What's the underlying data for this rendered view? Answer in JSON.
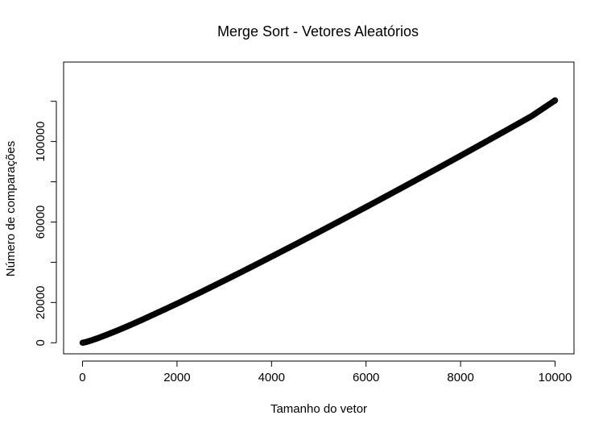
{
  "chart_data": {
    "type": "scatter",
    "title": "Merge Sort - Vetores Aleatórios",
    "xlabel": "Tamanho do vetor",
    "ylabel": "Número de comparações",
    "xlim": [
      -400,
      10400
    ],
    "ylim": [
      -5500,
      139500
    ],
    "xticks": [
      0,
      2000,
      4000,
      6000,
      8000,
      10000
    ],
    "xtick_labels": [
      "0",
      "2000",
      "4000",
      "6000",
      "8000",
      "10000"
    ],
    "yticks": [
      0,
      20000,
      40000,
      60000,
      80000,
      100000,
      120000
    ],
    "ytick_labels": [
      "0",
      "20000",
      "",
      "60000",
      "",
      "100000",
      ""
    ],
    "grid": false,
    "legend": "none",
    "marker": "open-circle",
    "color": "#000000",
    "series": [
      {
        "x": [
          1,
          50,
          100,
          200,
          300,
          400,
          500,
          750,
          1000,
          1250,
          1500,
          1750,
          2000,
          2500,
          3000,
          3500,
          4000,
          4500,
          5000,
          5500,
          6000,
          6500,
          7000,
          7500,
          8000,
          8500,
          9000,
          9500,
          10000
        ],
        "y": [
          0,
          220,
          540,
          1280,
          2090,
          2950,
          3850,
          6200,
          8700,
          11300,
          14000,
          16700,
          19450,
          25100,
          30900,
          36800,
          42800,
          48850,
          55000,
          61200,
          67450,
          73750,
          80100,
          86500,
          92950,
          99450,
          106000,
          112600,
          120450
        ]
      }
    ]
  }
}
